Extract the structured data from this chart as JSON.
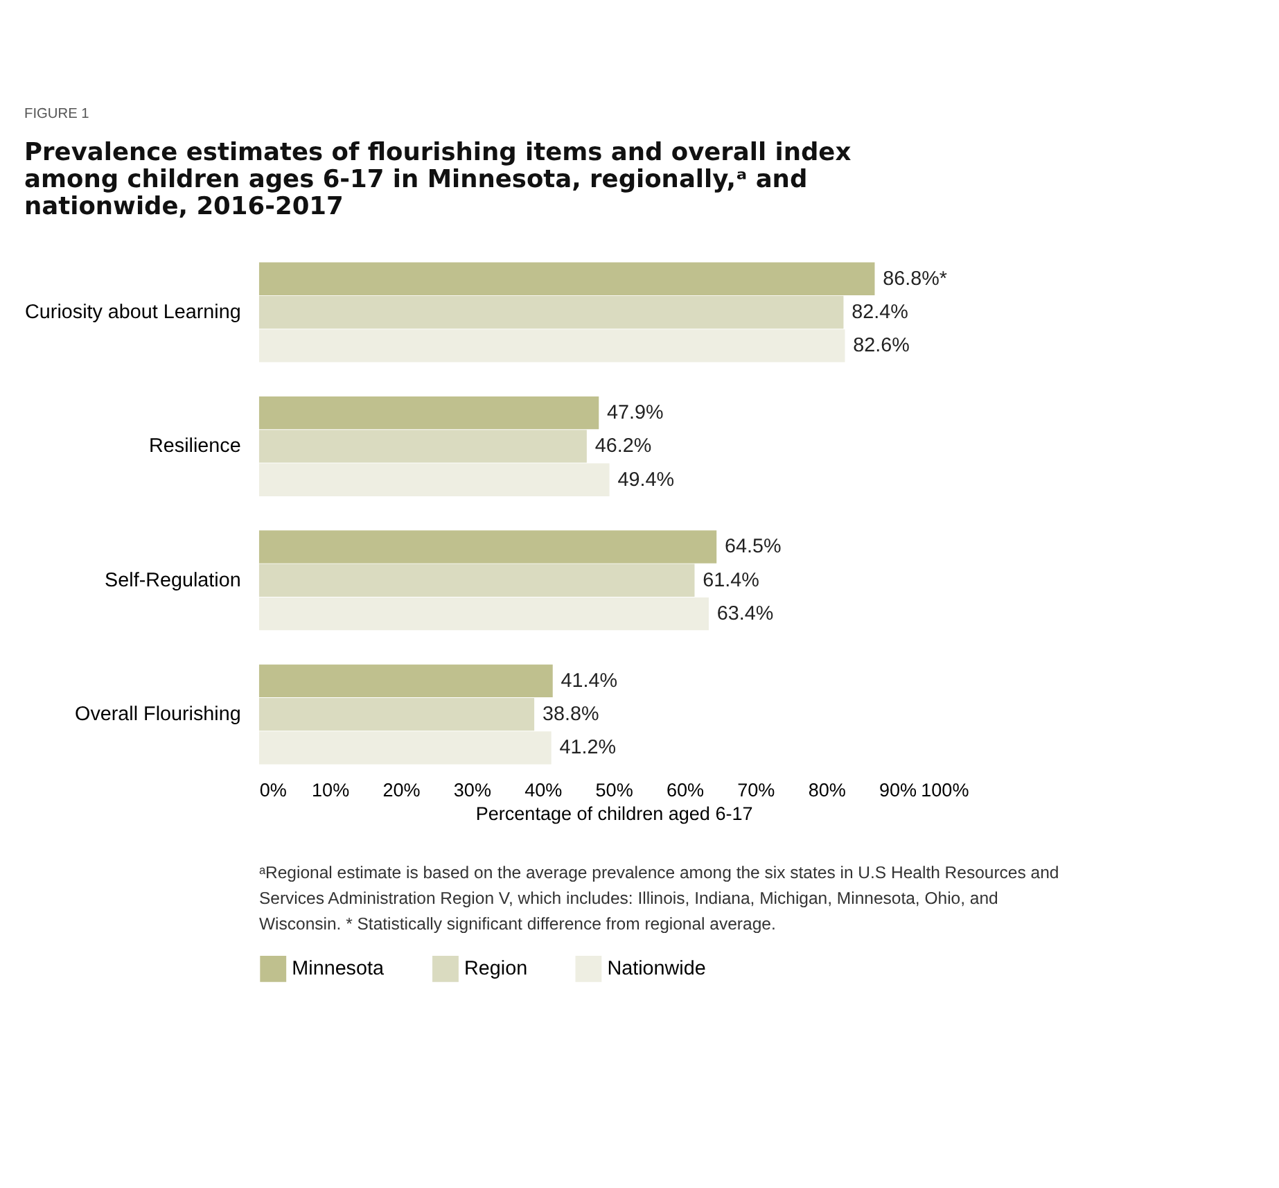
{
  "chart_data": {
    "type": "bar",
    "orientation": "horizontal",
    "title": "Prevalence estimates of flourishing items and overall index among children ages 6-17 in Minnesota, regionally,ᵃ and nationwide, 2016-2017",
    "categories": [
      "Curiosity about Learning",
      "Resilience",
      "Self-Regulation",
      "Overall Flourishing"
    ],
    "series": [
      {
        "name": "Minnesota",
        "color": "#bfc08e",
        "values": [
          86.8,
          47.9,
          64.5,
          41.4
        ],
        "value_labels": [
          "86.8%*",
          "47.9%",
          "64.5%",
          "41.4%"
        ]
      },
      {
        "name": "Region",
        "color": "#dadbc0",
        "values": [
          82.4,
          46.2,
          61.4,
          38.8
        ],
        "value_labels": [
          "82.4%",
          "46.2%",
          "61.4%",
          "38.8%"
        ]
      },
      {
        "name": "Nationwide",
        "color": "#eeeee2",
        "values": [
          82.6,
          49.4,
          63.4,
          41.2
        ],
        "value_labels": [
          "82.6%",
          "49.4%",
          "63.4%",
          "41.2%"
        ]
      }
    ],
    "xlim": [
      0,
      100
    ],
    "xticks": [
      {
        "value": 0,
        "label": "0%"
      },
      {
        "value": 10,
        "label": "10%"
      },
      {
        "value": 20,
        "label": "20%"
      },
      {
        "value": 30,
        "label": "30%"
      },
      {
        "value": 40,
        "label": "40%"
      },
      {
        "value": 50,
        "label": "50%"
      },
      {
        "value": 60,
        "label": "60%"
      },
      {
        "value": 70,
        "label": "70%"
      },
      {
        "value": 80,
        "label": "80%"
      },
      {
        "value": 90,
        "label": "90%"
      },
      {
        "value": 100,
        "label": "100%"
      }
    ],
    "xlabel": "Percentage of children aged 6-17",
    "legend": "bottom",
    "grid": false,
    "annotations": [
      "FIGURE 1",
      "ᵃRegional estimate is based on the average prevalence among the six states in U.S Health Resources and Services Administration Region V, which includes: Illinois, Indiana, Michigan, Minnesota, Ohio, and Wisconsin. * Statistically significant difference from regional average."
    ]
  }
}
